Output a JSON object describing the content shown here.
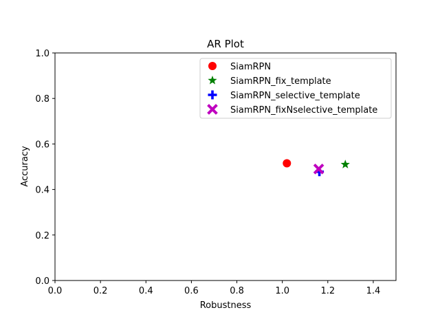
{
  "chart_data": {
    "type": "scatter",
    "title": "AR Plot",
    "xlabel": "Robustness",
    "ylabel": "Accuracy",
    "xlim": [
      0,
      1.5
    ],
    "ylim": [
      0,
      1.0
    ],
    "xticks": [
      "0.0",
      "0.2",
      "0.4",
      "0.6",
      "0.8",
      "1.0",
      "1.2",
      "1.4"
    ],
    "yticks": [
      "0.0",
      "0.2",
      "0.4",
      "0.6",
      "0.8",
      "1.0"
    ],
    "grid": false,
    "legend_position": "top-right",
    "series": [
      {
        "name": "SiamRPN",
        "marker": "circle",
        "color": "#ff0000",
        "x": 1.02,
        "y": 0.515
      },
      {
        "name": "SiamRPN_fix_template",
        "marker": "star",
        "color": "#008000",
        "x": 1.277,
        "y": 0.51
      },
      {
        "name": "SiamRPN_selective_template",
        "marker": "plus",
        "color": "#0000ff",
        "x": 1.163,
        "y": 0.478
      },
      {
        "name": "SiamRPN_fixNselective_template",
        "marker": "x",
        "color": "#bf00bf",
        "x": 1.16,
        "y": 0.49
      }
    ]
  }
}
